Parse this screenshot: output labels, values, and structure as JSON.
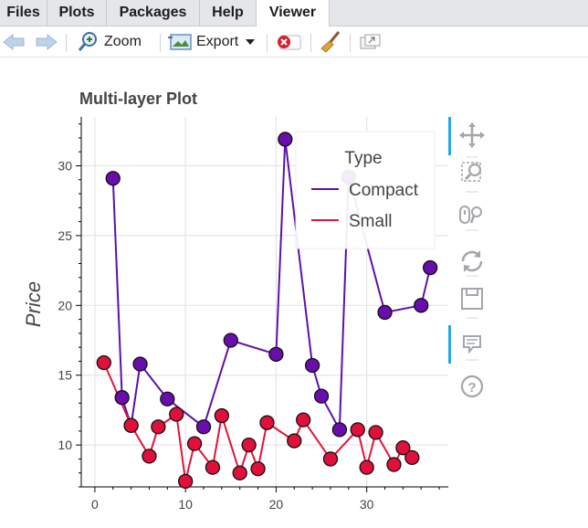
{
  "tabs": [
    "Files",
    "Plots",
    "Packages",
    "Help",
    "Viewer"
  ],
  "active_tab": "Viewer",
  "toolbar": {
    "zoom_label": "Zoom",
    "export_label": "Export"
  },
  "plot": {
    "title": "Multi-layer Plot",
    "ylabel": "Price"
  },
  "legend": {
    "title": "Type",
    "items": [
      "Compact",
      "Small"
    ]
  },
  "chart_data": {
    "type": "line",
    "title": "Multi-layer Plot",
    "xlabel": "",
    "ylabel": "Price",
    "xlim": [
      -1.5,
      39
    ],
    "ylim": [
      7,
      33.5
    ],
    "x_ticks": [
      0,
      10,
      20,
      30
    ],
    "y_ticks": [
      10,
      15,
      20,
      25,
      30
    ],
    "grid": true,
    "legend_position": "top-right",
    "series": [
      {
        "name": "Compact",
        "color": "#5b12a8",
        "marker_fill": "#6a0dad",
        "x": [
          2,
          3,
          4,
          5,
          8,
          12,
          15,
          20,
          21,
          24,
          25,
          27,
          28,
          32,
          36,
          37
        ],
        "y": [
          29.1,
          13.4,
          11.4,
          15.8,
          13.3,
          11.3,
          17.5,
          16.5,
          31.9,
          15.7,
          13.5,
          11.1,
          29.2,
          19.5,
          20.0,
          22.7
        ]
      },
      {
        "name": "Small",
        "color": "#e0143c",
        "marker_fill": "#e0103a",
        "x": [
          1,
          4,
          6,
          7,
          9,
          10,
          11,
          13,
          14,
          16,
          17,
          18,
          19,
          22,
          23,
          26,
          29,
          30,
          31,
          33,
          34,
          35
        ],
        "y": [
          15.9,
          11.4,
          9.2,
          11.3,
          12.2,
          7.4,
          10.1,
          8.4,
          12.1,
          8.0,
          10.0,
          8.3,
          11.6,
          10.3,
          11.8,
          9.0,
          11.1,
          8.4,
          10.9,
          8.6,
          9.8,
          9.1
        ]
      }
    ]
  }
}
